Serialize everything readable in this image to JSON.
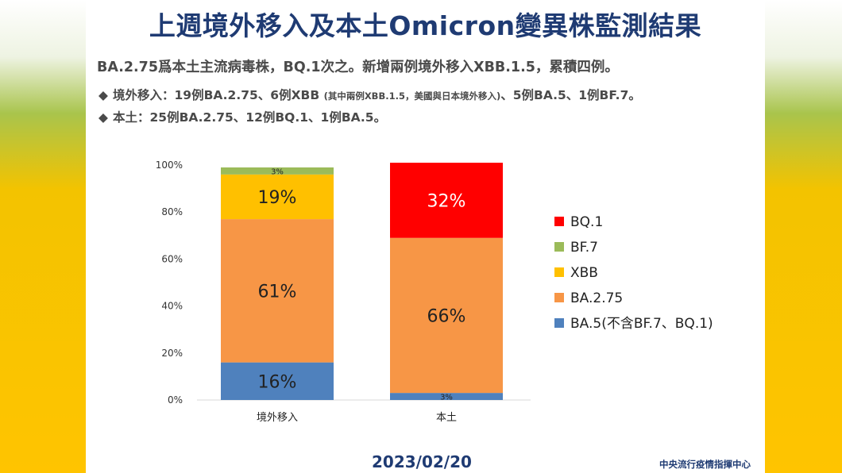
{
  "slide": {
    "title": "上週境外移入及本土Omicron變異株監測結果",
    "summary": "BA.2.75爲本土主流病毒株，BQ.1次之。新增兩例境外移入XBB.1.5，累積四例。",
    "bullet_marker": "◆",
    "bullet1_main": "境外移入：19例BA.2.75、6例XBB ",
    "bullet1_note": "(其中兩例XBB.1.5，美國與日本境外移入)",
    "bullet1_tail": "、5例BA.5、1例BF.7。",
    "bullet2": "本土：25例BA.2.75、12例BQ.1、1例BA.5。",
    "date": "2023/02/20",
    "organization": "中央流行疫情指揮中心"
  },
  "chart_data": {
    "type": "bar",
    "stacked": true,
    "categories": [
      "境外移入",
      "本土"
    ],
    "ylim": [
      0,
      100
    ],
    "yticks": [
      "0%",
      "20%",
      "40%",
      "60%",
      "80%",
      "100%"
    ],
    "legend_position": "right",
    "series": [
      {
        "name": "BA.5(不含BF.7、BQ.1)",
        "color": "#4f81bd",
        "values": [
          16,
          3
        ],
        "labels": [
          "16%",
          "3%"
        ]
      },
      {
        "name": "BA.2.75",
        "color": "#f79646",
        "values": [
          61,
          66
        ],
        "labels": [
          "61%",
          "66%"
        ]
      },
      {
        "name": "XBB",
        "color": "#ffc000",
        "values": [
          19,
          0
        ],
        "labels": [
          "19%",
          ""
        ]
      },
      {
        "name": "BF.7",
        "color": "#9bbb59",
        "values": [
          3,
          0
        ],
        "labels": [
          "3%",
          ""
        ]
      },
      {
        "name": "BQ.1",
        "color": "#ff0000",
        "values": [
          0,
          32
        ],
        "labels": [
          "",
          "32%"
        ]
      }
    ],
    "legend_order": [
      "BQ.1",
      "BF.7",
      "XBB",
      "BA.2.75",
      "BA.5(不含BF.7、BQ.1)"
    ]
  }
}
